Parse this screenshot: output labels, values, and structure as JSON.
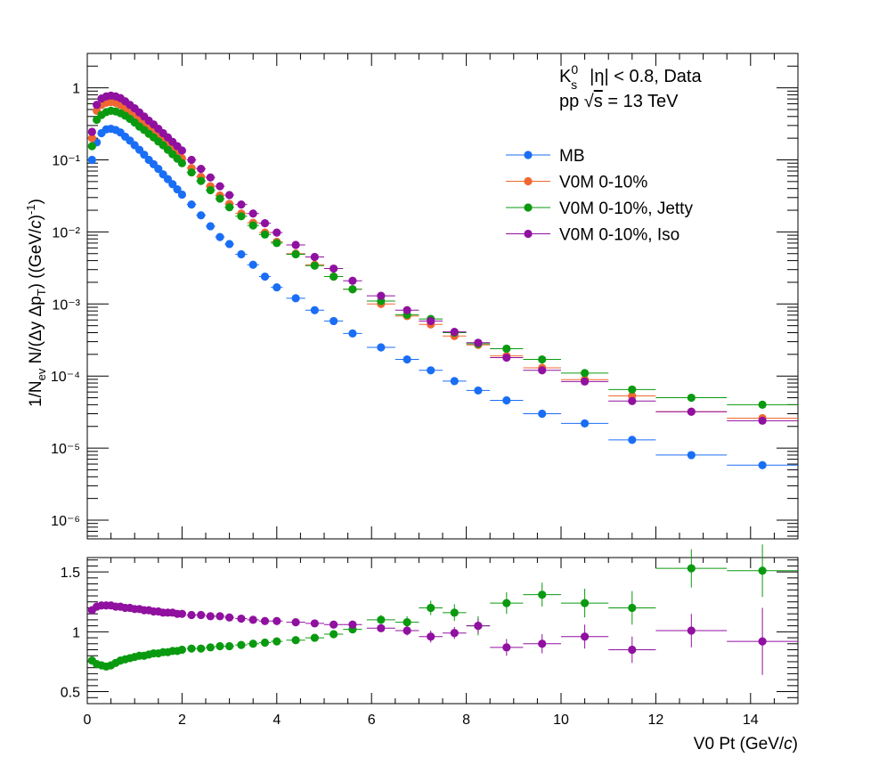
{
  "chart_data": [
    {
      "type": "scatter",
      "panel": "spectra",
      "ylabel": "1/N_ev N/(Δy Δp_T) ((GeV/c)^-1)",
      "y_scale": "log",
      "ylim": [
        5.5e-07,
        3.0
      ],
      "xlim": [
        0,
        15
      ],
      "y_tick_labels": [
        "10⁻⁶",
        "10⁻⁵",
        "10⁻⁴",
        "10⁻³",
        "10⁻²",
        "10⁻¹",
        "1"
      ],
      "annotations": [
        "K⁰s   |η| < 0.8, Data",
        "pp  √s = 13 TeV"
      ],
      "legend_position": "top-right",
      "legend": [
        "MB",
        "V0M 0-10%",
        "V0M 0-10%, Jetty",
        "V0M 0-10%, Iso"
      ],
      "series": [
        {
          "name": "MB",
          "color": "#1a6ef5",
          "x": [
            0.1,
            0.2,
            0.3,
            0.4,
            0.5,
            0.6,
            0.7,
            0.8,
            0.9,
            1.0,
            1.1,
            1.2,
            1.3,
            1.4,
            1.5,
            1.6,
            1.7,
            1.8,
            1.9,
            2.0,
            2.2,
            2.4,
            2.6,
            2.8,
            3.0,
            3.25,
            3.5,
            3.75,
            4.0,
            4.4,
            4.8,
            5.2,
            5.6,
            6.2,
            6.75,
            7.25,
            7.75,
            8.25,
            8.85,
            9.6,
            10.5,
            11.5,
            12.75,
            14.25
          ],
          "xerr": [
            0.05,
            0.05,
            0.05,
            0.05,
            0.05,
            0.05,
            0.05,
            0.05,
            0.05,
            0.05,
            0.05,
            0.05,
            0.05,
            0.05,
            0.05,
            0.05,
            0.05,
            0.05,
            0.05,
            0.05,
            0.1,
            0.1,
            0.1,
            0.1,
            0.1,
            0.125,
            0.125,
            0.125,
            0.125,
            0.2,
            0.2,
            0.2,
            0.2,
            0.3,
            0.25,
            0.25,
            0.25,
            0.25,
            0.35,
            0.4,
            0.5,
            0.5,
            0.75,
            0.75
          ],
          "y": [
            0.1,
            0.175,
            0.235,
            0.265,
            0.27,
            0.26,
            0.24,
            0.21,
            0.185,
            0.16,
            0.138,
            0.118,
            0.1,
            0.087,
            0.075,
            0.063,
            0.054,
            0.046,
            0.039,
            0.033,
            0.024,
            0.017,
            0.012,
            0.0085,
            0.0068,
            0.0049,
            0.0035,
            0.0024,
            0.0017,
            0.0012,
            0.00082,
            0.00058,
            0.00039,
            0.00025,
            0.00017,
            0.00012,
            8.5e-05,
            6.3e-05,
            4.6e-05,
            3e-05,
            2.2e-05,
            1.3e-05,
            8e-06,
            5.8e-06
          ]
        },
        {
          "name": "V0M 0-10%",
          "color": "#f06830",
          "x": [
            0.1,
            0.2,
            0.3,
            0.4,
            0.5,
            0.6,
            0.7,
            0.8,
            0.9,
            1.0,
            1.1,
            1.2,
            1.3,
            1.4,
            1.5,
            1.6,
            1.7,
            1.8,
            1.9,
            2.0,
            2.2,
            2.4,
            2.6,
            2.8,
            3.0,
            3.25,
            3.5,
            3.75,
            4.0,
            4.4,
            4.8,
            5.2,
            5.6,
            6.2,
            6.75,
            7.25,
            7.75,
            8.25,
            8.85,
            9.6,
            10.5,
            11.5,
            12.75,
            14.25
          ],
          "xerr": [
            0.05,
            0.05,
            0.05,
            0.05,
            0.05,
            0.05,
            0.05,
            0.05,
            0.05,
            0.05,
            0.05,
            0.05,
            0.05,
            0.05,
            0.05,
            0.05,
            0.05,
            0.05,
            0.05,
            0.05,
            0.1,
            0.1,
            0.1,
            0.1,
            0.1,
            0.125,
            0.125,
            0.125,
            0.125,
            0.2,
            0.2,
            0.2,
            0.2,
            0.3,
            0.25,
            0.25,
            0.25,
            0.25,
            0.35,
            0.4,
            0.5,
            0.5,
            0.75,
            0.75
          ],
          "y": [
            0.2,
            0.48,
            0.58,
            0.62,
            0.635,
            0.62,
            0.58,
            0.52,
            0.46,
            0.41,
            0.36,
            0.32,
            0.28,
            0.245,
            0.215,
            0.185,
            0.16,
            0.14,
            0.12,
            0.105,
            0.077,
            0.058,
            0.043,
            0.032,
            0.0245,
            0.018,
            0.0134,
            0.0098,
            0.0073,
            0.005,
            0.0035,
            0.0024,
            0.0016,
            0.001,
            0.00068,
            0.00052,
            0.00036,
            0.00027,
            0.00019,
            0.00013,
            8.9e-05,
            5.3e-05,
            3.2e-05,
            2.6e-05
          ]
        },
        {
          "name": "V0M 0-10%, Jetty",
          "color": "#0a9a10",
          "x": [
            0.1,
            0.2,
            0.3,
            0.4,
            0.5,
            0.6,
            0.7,
            0.8,
            0.9,
            1.0,
            1.1,
            1.2,
            1.3,
            1.4,
            1.5,
            1.6,
            1.7,
            1.8,
            1.9,
            2.0,
            2.2,
            2.4,
            2.6,
            2.8,
            3.0,
            3.25,
            3.5,
            3.75,
            4.0,
            4.4,
            4.8,
            5.2,
            5.6,
            6.2,
            6.75,
            7.25,
            7.75,
            8.25,
            8.85,
            9.6,
            10.5,
            11.5,
            12.75,
            14.25
          ],
          "xerr": [
            0.05,
            0.05,
            0.05,
            0.05,
            0.05,
            0.05,
            0.05,
            0.05,
            0.05,
            0.05,
            0.05,
            0.05,
            0.05,
            0.05,
            0.05,
            0.05,
            0.05,
            0.05,
            0.05,
            0.05,
            0.1,
            0.1,
            0.1,
            0.1,
            0.1,
            0.125,
            0.125,
            0.125,
            0.125,
            0.2,
            0.2,
            0.2,
            0.2,
            0.3,
            0.25,
            0.25,
            0.25,
            0.25,
            0.35,
            0.4,
            0.5,
            0.5,
            0.75,
            0.75
          ],
          "y": [
            0.155,
            0.36,
            0.42,
            0.46,
            0.48,
            0.47,
            0.445,
            0.41,
            0.37,
            0.33,
            0.29,
            0.26,
            0.23,
            0.205,
            0.18,
            0.16,
            0.138,
            0.12,
            0.104,
            0.09,
            0.067,
            0.051,
            0.038,
            0.029,
            0.022,
            0.0165,
            0.0123,
            0.0092,
            0.007,
            0.0049,
            0.0034,
            0.0024,
            0.0016,
            0.0011,
            0.00071,
            0.00062,
            0.0004,
            0.00028,
            0.00024,
            0.00017,
            0.00011,
            6.5e-05,
            5e-05,
            4e-05
          ]
        },
        {
          "name": "V0M 0-10%, Iso",
          "color": "#9010a0",
          "x": [
            0.1,
            0.2,
            0.3,
            0.4,
            0.5,
            0.6,
            0.7,
            0.8,
            0.9,
            1.0,
            1.1,
            1.2,
            1.3,
            1.4,
            1.5,
            1.6,
            1.7,
            1.8,
            1.9,
            2.0,
            2.2,
            2.4,
            2.6,
            2.8,
            3.0,
            3.25,
            3.5,
            3.75,
            4.0,
            4.4,
            4.8,
            5.2,
            5.6,
            6.2,
            6.75,
            7.25,
            7.75,
            8.25,
            8.85,
            9.6,
            10.5,
            11.5,
            12.75,
            14.25
          ],
          "xerr": [
            0.05,
            0.05,
            0.05,
            0.05,
            0.05,
            0.05,
            0.05,
            0.05,
            0.05,
            0.05,
            0.05,
            0.05,
            0.05,
            0.05,
            0.05,
            0.05,
            0.05,
            0.05,
            0.05,
            0.05,
            0.1,
            0.1,
            0.1,
            0.1,
            0.1,
            0.125,
            0.125,
            0.125,
            0.125,
            0.2,
            0.2,
            0.2,
            0.2,
            0.3,
            0.25,
            0.25,
            0.25,
            0.25,
            0.35,
            0.4,
            0.5,
            0.5,
            0.75,
            0.75
          ],
          "y": [
            0.245,
            0.58,
            0.71,
            0.76,
            0.78,
            0.76,
            0.72,
            0.65,
            0.58,
            0.52,
            0.455,
            0.4,
            0.35,
            0.31,
            0.27,
            0.235,
            0.205,
            0.178,
            0.155,
            0.135,
            0.1,
            0.075,
            0.057,
            0.043,
            0.0325,
            0.024,
            0.018,
            0.0132,
            0.0098,
            0.0066,
            0.0045,
            0.0031,
            0.0021,
            0.0013,
            0.00082,
            0.00058,
            0.00041,
            0.00029,
            0.00018,
            0.00012,
            8.4e-05,
            4.5e-05,
            3.2e-05,
            2.4e-05
          ]
        }
      ]
    },
    {
      "type": "scatter",
      "panel": "ratio",
      "xlabel": "V0 Pt (GeV/c)",
      "xlim": [
        0,
        15
      ],
      "ylim": [
        0.4,
        1.62
      ],
      "x_ticks": [
        0,
        2,
        4,
        6,
        8,
        10,
        12,
        14
      ],
      "y_ticks": [
        0.5,
        1,
        1.5
      ],
      "series": [
        {
          "name": "V0M 0-10%, Jetty",
          "color": "#0a9a10",
          "x": [
            0.1,
            0.2,
            0.3,
            0.4,
            0.5,
            0.6,
            0.7,
            0.8,
            0.9,
            1.0,
            1.1,
            1.2,
            1.3,
            1.4,
            1.5,
            1.6,
            1.7,
            1.8,
            1.9,
            2.0,
            2.2,
            2.4,
            2.6,
            2.8,
            3.0,
            3.25,
            3.5,
            3.75,
            4.0,
            4.4,
            4.8,
            5.2,
            5.6,
            6.2,
            6.75,
            7.25,
            7.75,
            8.25,
            8.85,
            9.6,
            10.5,
            11.5,
            12.75,
            14.25
          ],
          "xerr": [
            0.05,
            0.05,
            0.05,
            0.05,
            0.05,
            0.05,
            0.05,
            0.05,
            0.05,
            0.05,
            0.05,
            0.05,
            0.05,
            0.05,
            0.05,
            0.05,
            0.05,
            0.05,
            0.05,
            0.05,
            0.1,
            0.1,
            0.1,
            0.1,
            0.1,
            0.125,
            0.125,
            0.125,
            0.125,
            0.2,
            0.2,
            0.2,
            0.2,
            0.3,
            0.25,
            0.25,
            0.25,
            0.25,
            0.35,
            0.4,
            0.5,
            0.5,
            0.75,
            0.75
          ],
          "y": [
            0.76,
            0.73,
            0.72,
            0.71,
            0.72,
            0.74,
            0.76,
            0.77,
            0.78,
            0.79,
            0.8,
            0.8,
            0.81,
            0.82,
            0.82,
            0.83,
            0.83,
            0.84,
            0.84,
            0.85,
            0.86,
            0.86,
            0.87,
            0.88,
            0.88,
            0.89,
            0.9,
            0.91,
            0.92,
            0.93,
            0.95,
            0.98,
            1.02,
            1.1,
            1.08,
            1.2,
            1.16,
            1.05,
            1.24,
            1.31,
            1.24,
            1.2,
            1.53,
            1.51
          ],
          "yerr": [
            0.02,
            0.02,
            0.02,
            0.02,
            0.02,
            0.02,
            0.02,
            0.02,
            0.02,
            0.02,
            0.02,
            0.02,
            0.02,
            0.02,
            0.02,
            0.02,
            0.02,
            0.02,
            0.02,
            0.02,
            0.02,
            0.02,
            0.02,
            0.02,
            0.02,
            0.02,
            0.02,
            0.02,
            0.02,
            0.02,
            0.02,
            0.03,
            0.03,
            0.04,
            0.05,
            0.06,
            0.07,
            0.08,
            0.09,
            0.1,
            0.12,
            0.14,
            0.16,
            0.22
          ]
        },
        {
          "name": "V0M 0-10%, Iso",
          "color": "#9010a0",
          "x": [
            0.1,
            0.2,
            0.3,
            0.4,
            0.5,
            0.6,
            0.7,
            0.8,
            0.9,
            1.0,
            1.1,
            1.2,
            1.3,
            1.4,
            1.5,
            1.6,
            1.7,
            1.8,
            1.9,
            2.0,
            2.2,
            2.4,
            2.6,
            2.8,
            3.0,
            3.25,
            3.5,
            3.75,
            4.0,
            4.4,
            4.8,
            5.2,
            5.6,
            6.2,
            6.75,
            7.25,
            7.75,
            8.25,
            8.85,
            9.6,
            10.5,
            11.5,
            12.75,
            14.25
          ],
          "xerr": [
            0.05,
            0.05,
            0.05,
            0.05,
            0.05,
            0.05,
            0.05,
            0.05,
            0.05,
            0.05,
            0.05,
            0.05,
            0.05,
            0.05,
            0.05,
            0.05,
            0.05,
            0.05,
            0.05,
            0.05,
            0.1,
            0.1,
            0.1,
            0.1,
            0.1,
            0.125,
            0.125,
            0.125,
            0.125,
            0.2,
            0.2,
            0.2,
            0.2,
            0.3,
            0.25,
            0.25,
            0.25,
            0.25,
            0.35,
            0.4,
            0.5,
            0.5,
            0.75,
            0.75
          ],
          "y": [
            1.18,
            1.21,
            1.22,
            1.22,
            1.22,
            1.21,
            1.21,
            1.2,
            1.2,
            1.19,
            1.19,
            1.18,
            1.18,
            1.17,
            1.17,
            1.16,
            1.16,
            1.16,
            1.15,
            1.15,
            1.14,
            1.14,
            1.13,
            1.13,
            1.12,
            1.11,
            1.1,
            1.09,
            1.09,
            1.08,
            1.07,
            1.06,
            1.06,
            1.03,
            1.01,
            0.96,
            0.99,
            1.05,
            0.87,
            0.9,
            0.96,
            0.85,
            1.01,
            0.92
          ],
          "yerr": [
            0.02,
            0.02,
            0.02,
            0.02,
            0.02,
            0.02,
            0.02,
            0.02,
            0.02,
            0.02,
            0.02,
            0.02,
            0.02,
            0.02,
            0.02,
            0.02,
            0.02,
            0.02,
            0.02,
            0.02,
            0.02,
            0.02,
            0.02,
            0.02,
            0.02,
            0.02,
            0.02,
            0.02,
            0.02,
            0.02,
            0.02,
            0.02,
            0.03,
            0.03,
            0.04,
            0.05,
            0.05,
            0.06,
            0.07,
            0.08,
            0.1,
            0.11,
            0.14,
            0.28
          ]
        }
      ]
    }
  ]
}
